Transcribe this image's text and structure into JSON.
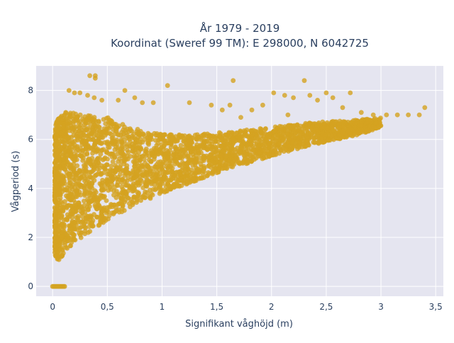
{
  "chart_data": {
    "type": "scatter",
    "title_line1": "År 1979 - 2019",
    "title_line2": "Koordinat (Sweref 99 TM): E 298000, N 6042725",
    "xlabel": "Signifikant våghöjd (m)",
    "ylabel": "Vågperiod (s)",
    "xlim": [
      -0.15,
      3.57
    ],
    "ylim": [
      -0.4,
      9.0
    ],
    "x_ticks": [
      0,
      0.5,
      1,
      1.5,
      2,
      2.5,
      3,
      3.5
    ],
    "x_tick_labels": [
      "0",
      "0,5",
      "1",
      "1,5",
      "2",
      "2,5",
      "3",
      "3,5"
    ],
    "y_ticks": [
      0,
      2,
      4,
      6,
      8
    ],
    "y_tick_labels": [
      "0",
      "2",
      "4",
      "6",
      "8"
    ],
    "grid": true,
    "marker_color": "#D4A321",
    "background_color": "#E5E5F0",
    "series": [
      {
        "density_envelope": [
          {
            "x": 0.02,
            "ymin": 1.3,
            "ymax": 6.4
          },
          {
            "x": 0.05,
            "ymin": 1.05,
            "ymax": 7.0
          },
          {
            "x": 0.1,
            "ymin": 1.3,
            "ymax": 7.1
          },
          {
            "x": 0.2,
            "ymin": 1.8,
            "ymax": 7.1
          },
          {
            "x": 0.3,
            "ymin": 2.1,
            "ymax": 7.0
          },
          {
            "x": 0.5,
            "ymin": 2.7,
            "ymax": 6.9
          },
          {
            "x": 0.7,
            "ymin": 3.2,
            "ymax": 6.5
          },
          {
            "x": 1.0,
            "ymin": 3.8,
            "ymax": 6.2
          },
          {
            "x": 1.3,
            "ymin": 4.3,
            "ymax": 6.2
          },
          {
            "x": 1.6,
            "ymin": 4.8,
            "ymax": 6.3
          },
          {
            "x": 2.0,
            "ymin": 5.3,
            "ymax": 6.5
          },
          {
            "x": 2.4,
            "ymin": 5.8,
            "ymax": 6.7
          },
          {
            "x": 2.8,
            "ymin": 6.2,
            "ymax": 6.8
          },
          {
            "x": 3.0,
            "ymin": 6.5,
            "ymax": 6.9
          }
        ],
        "zero_cluster": {
          "x_from": 0.0,
          "x_to": 0.11,
          "y": 0
        },
        "outliers": [
          [
            0.34,
            8.6
          ],
          [
            0.39,
            8.6
          ],
          [
            0.39,
            8.5
          ],
          [
            0.15,
            8.0
          ],
          [
            0.2,
            7.9
          ],
          [
            0.25,
            7.9
          ],
          [
            0.32,
            7.8
          ],
          [
            0.38,
            7.7
          ],
          [
            0.45,
            7.6
          ],
          [
            0.66,
            8.0
          ],
          [
            0.6,
            7.6
          ],
          [
            0.75,
            7.7
          ],
          [
            0.82,
            7.5
          ],
          [
            0.92,
            7.5
          ],
          [
            1.05,
            8.2
          ],
          [
            1.25,
            7.5
          ],
          [
            1.45,
            7.4
          ],
          [
            1.65,
            8.4
          ],
          [
            1.62,
            7.4
          ],
          [
            1.92,
            7.4
          ],
          [
            2.02,
            7.9
          ],
          [
            2.12,
            7.8
          ],
          [
            2.2,
            7.7
          ],
          [
            2.3,
            8.4
          ],
          [
            2.35,
            7.8
          ],
          [
            2.42,
            7.6
          ],
          [
            2.5,
            7.9
          ],
          [
            2.56,
            7.7
          ],
          [
            2.72,
            7.9
          ],
          [
            2.82,
            7.1
          ],
          [
            2.93,
            7.0
          ],
          [
            3.05,
            7.0
          ],
          [
            3.15,
            7.0
          ],
          [
            3.25,
            7.0
          ],
          [
            3.35,
            7.0
          ],
          [
            3.4,
            7.3
          ],
          [
            1.82,
            7.2
          ],
          [
            1.55,
            7.2
          ],
          [
            0.12,
            7.1
          ],
          [
            1.72,
            6.9
          ],
          [
            2.15,
            7.0
          ],
          [
            2.65,
            7.3
          ]
        ]
      }
    ]
  }
}
